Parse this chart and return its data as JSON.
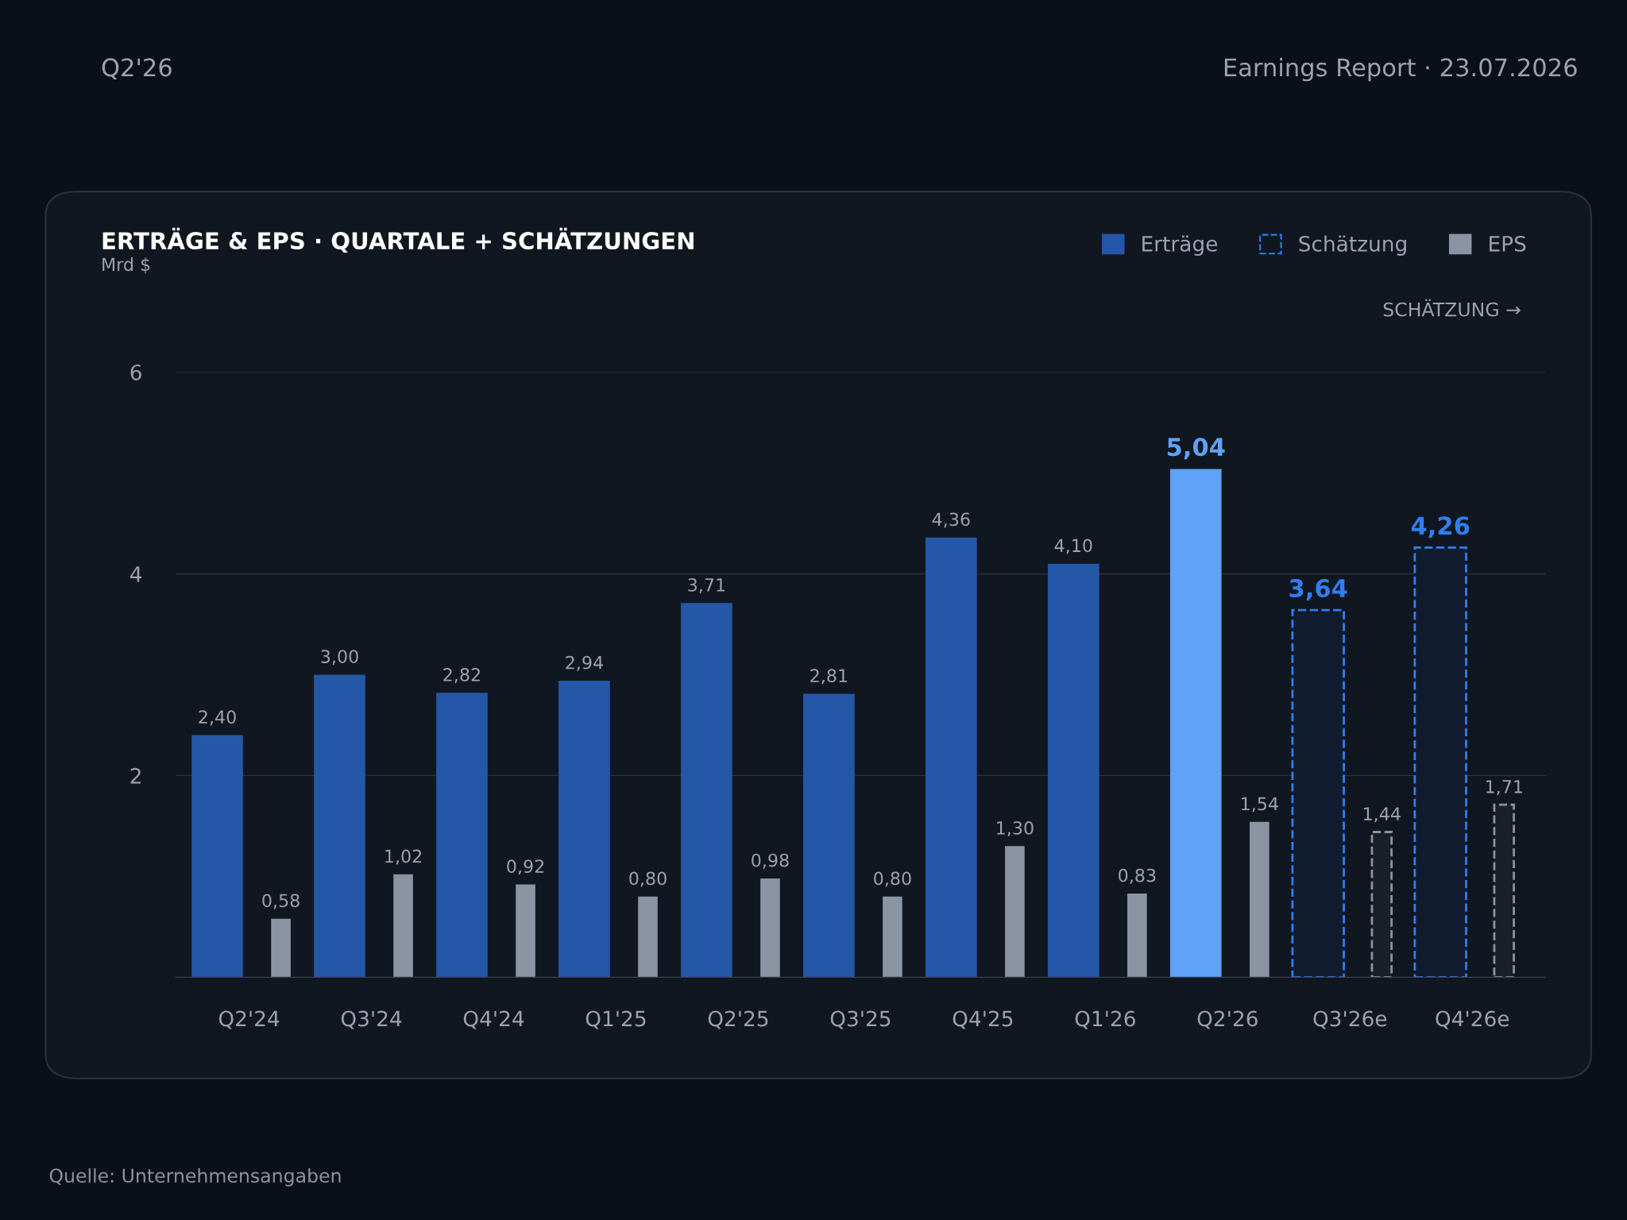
{
  "chart_data": {
    "type": "bar",
    "title": "ERTRÄGE & EPS · QUARTALE + SCHÄTZUNGEN",
    "subtitle": "Mrd $",
    "categories": [
      "Q2'24",
      "Q3'24",
      "Q4'24",
      "Q1'25",
      "Q2'25",
      "Q3'25",
      "Q4'25",
      "Q1'26",
      "Q2'26",
      "Q3'26e",
      "Q4'26e"
    ],
    "series": [
      {
        "name": "Erträge",
        "color": "#2457a8",
        "colors": [
          "#2457a8",
          "#2457a8",
          "#2457a8",
          "#2457a8",
          "#2457a8",
          "#2457a8",
          "#2457a8",
          "#2457a8",
          "#5ea3f8",
          "#2457a8",
          "#2457a8"
        ],
        "values": [
          2.4,
          3.0,
          2.82,
          2.94,
          3.71,
          2.81,
          4.36,
          4.1,
          5.04,
          null,
          null
        ],
        "value_labels": [
          "2,40",
          "3,00",
          "2,82",
          "2,94",
          "3,71",
          "2,81",
          "4,36",
          "4,10",
          "5,04",
          null,
          null
        ]
      },
      {
        "name": "Schätzung",
        "color": "#2f7ff0",
        "line_style": "dashed",
        "values": [
          null,
          null,
          null,
          null,
          null,
          null,
          null,
          null,
          null,
          3.64,
          4.26
        ],
        "value_labels": [
          null,
          null,
          null,
          null,
          null,
          null,
          null,
          null,
          null,
          "3,64",
          "4,26"
        ]
      },
      {
        "name": "EPS",
        "color": "#8a94a2",
        "values": [
          0.58,
          1.02,
          0.92,
          0.8,
          0.98,
          0.8,
          1.3,
          0.83,
          1.54,
          null,
          null
        ],
        "value_labels": [
          "0,58",
          "1,02",
          "0,92",
          "0,80",
          "0,98",
          "0,80",
          "1,30",
          "0,83",
          "1,54",
          null,
          null
        ]
      },
      {
        "color": "#8a94a2",
        "line_style": "dashed",
        "values": [
          null,
          null,
          null,
          null,
          null,
          null,
          null,
          null,
          null,
          1.44,
          1.71
        ],
        "value_labels": [
          null,
          null,
          null,
          null,
          null,
          null,
          null,
          null,
          null,
          "1,44",
          "1,71"
        ]
      }
    ],
    "ylim": [
      0,
      6
    ],
    "yticks": [
      2,
      4,
      6
    ],
    "grid": "y",
    "legend": "top right",
    "annotations": [
      "Q2'26",
      "Earnings Report · 23.07.2026",
      "SCHÄTZUNG →",
      "Quelle: Unternehmensangaben"
    ]
  }
}
